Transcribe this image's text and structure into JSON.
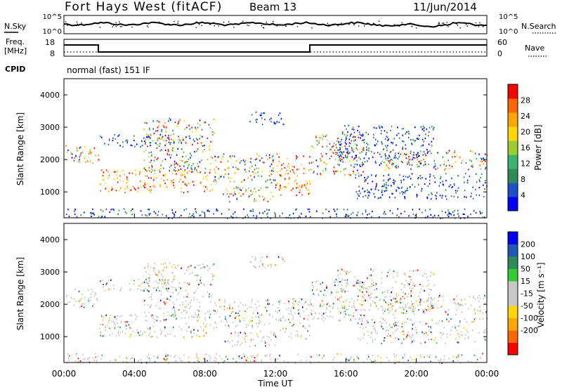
{
  "header": {
    "station": "Fort Hays West (fitACF)",
    "beam": "Beam 13",
    "date": "11/Jun/2014"
  },
  "noise_panel": {
    "left_label": "N.Sky",
    "left_ticks": [
      "10^5",
      "10^0"
    ],
    "right_ticks": [
      "10^5",
      "10^0"
    ],
    "right_label": "N.Search"
  },
  "freq_panel": {
    "left_label_1": "Freq.",
    "left_label_2": "[MHz]",
    "left_ticks": [
      "18",
      "8"
    ],
    "right_ticks": [
      "60",
      "0"
    ],
    "right_label": "Nave"
  },
  "cpid": {
    "label": "CPID",
    "value": "normal (fast) 151 IF"
  },
  "colors": {
    "power": [
      "#0000ff",
      "#2050c8",
      "#2e8b57",
      "#3cb371",
      "#9acd32",
      "#ffd700",
      "#ffa500",
      "#ff6600",
      "#ff0000"
    ],
    "velocity": [
      "#ff0000",
      "#ff6600",
      "#ffa500",
      "#ffd700",
      "#c8c8c8",
      "#c8c8c8",
      "#32cd32",
      "#2e8b57",
      "#1e5ab4",
      "#0000ff"
    ]
  },
  "chart_data": [
    {
      "type": "heatmap",
      "name": "power",
      "ylabel": "Slant Range [km]",
      "yticks": [
        "4000",
        "3000",
        "2000",
        "1000"
      ],
      "ylim": [
        200,
        4500
      ],
      "colorbar_label": "Power [dB]",
      "colorbar_ticks": [
        "28",
        "24",
        "20",
        "16",
        "12",
        "8",
        "4"
      ],
      "colorbar_range": [
        0,
        32
      ]
    },
    {
      "type": "heatmap",
      "name": "velocity",
      "ylabel": "Slant Range [km]",
      "yticks": [
        "4000",
        "3000",
        "2000",
        "1000"
      ],
      "ylim": [
        200,
        4500
      ],
      "colorbar_label": "Velocity [m s⁻¹]",
      "colorbar_ticks": [
        "200",
        "100",
        "50",
        "15",
        "-15",
        "-50",
        "-100",
        "-200"
      ]
    }
  ],
  "x_axis": {
    "label": "Time UT",
    "ticks": [
      "00:00",
      "04:00",
      "08:00",
      "12:00",
      "16:00",
      "20:00",
      "00:00"
    ]
  }
}
